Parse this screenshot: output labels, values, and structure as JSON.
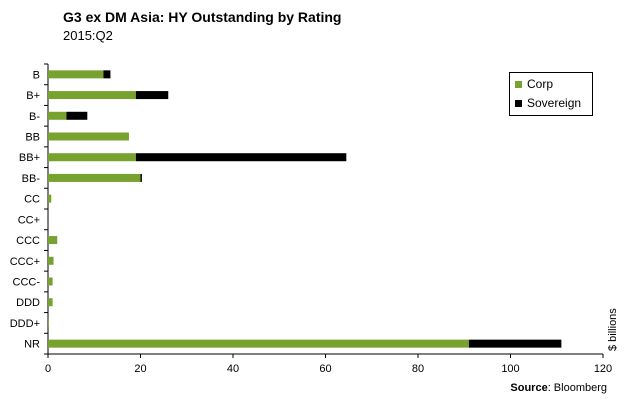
{
  "title": "G3 ex DM Asia:  HY Outstanding by Rating",
  "subtitle": "2015:Q2",
  "source_label": "Source",
  "source_text": ": Bloomberg",
  "chart_data": {
    "type": "bar",
    "orientation": "horizontal",
    "stacked": true,
    "categories": [
      "B",
      "B+",
      "B-",
      "BB",
      "BB+",
      "BB-",
      "CC",
      "CC+",
      "CCC",
      "CCC+",
      "CCC-",
      "DDD",
      "DDD+",
      "NR"
    ],
    "series": [
      {
        "name": "Corp",
        "color": "#77a22f",
        "values": [
          12,
          19,
          4,
          17.5,
          19,
          20,
          0.7,
          0,
          2,
          1.2,
          1,
          1,
          0.2,
          91
        ]
      },
      {
        "name": "Sovereign",
        "color": "#000000",
        "values": [
          1.5,
          7,
          4.5,
          0,
          45.5,
          0.3,
          0,
          0,
          0,
          0,
          0,
          0,
          0,
          20
        ]
      }
    ],
    "xlim": [
      0,
      120
    ],
    "xticks": [
      "0",
      "20",
      "40",
      "60",
      "80",
      "100",
      "120"
    ],
    "xlabel": "",
    "ylabel": "$ billions",
    "legend_position": "top-right",
    "grid": false
  }
}
